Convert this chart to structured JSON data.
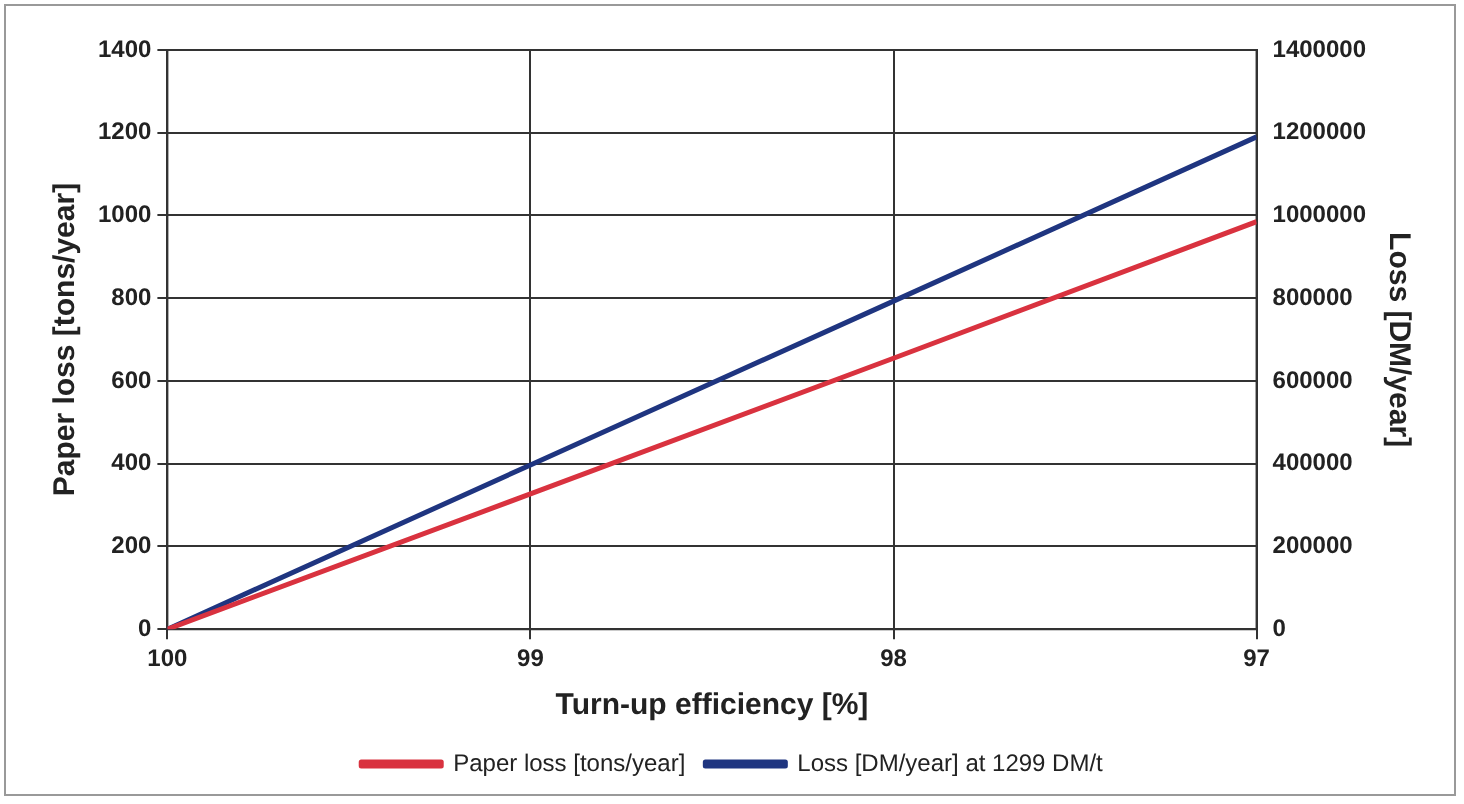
{
  "chart_data": {
    "type": "line",
    "xlabel": "Turn-up efficiency [%]",
    "ylabel": "Paper loss [tons/year]",
    "y2label": "Loss [DM/year]",
    "x": [
      100,
      99,
      98,
      97
    ],
    "series": [
      {
        "name": "Paper loss [tons/year]",
        "color": "#d9323f",
        "values": [
          0,
          327,
          655,
          985
        ]
      },
      {
        "name": "Loss [DM/year] at 1299 DM/t",
        "color": "#1f3580",
        "values": [
          0,
          397000,
          793000,
          1190000
        ],
        "axis": "y2"
      }
    ],
    "xlim": [
      100,
      97
    ],
    "xticks": [
      100,
      99,
      98,
      97
    ],
    "ylim": [
      0,
      1400
    ],
    "yticks": [
      0,
      200,
      400,
      600,
      800,
      1000,
      1200,
      1400
    ],
    "y2lim": [
      0,
      1400000
    ],
    "y2ticks": [
      0,
      200000,
      400000,
      600000,
      800000,
      1000000,
      1200000,
      1400000
    ],
    "grid": true,
    "legend": "bottom",
    "marker": "none",
    "line_style": "solid"
  }
}
